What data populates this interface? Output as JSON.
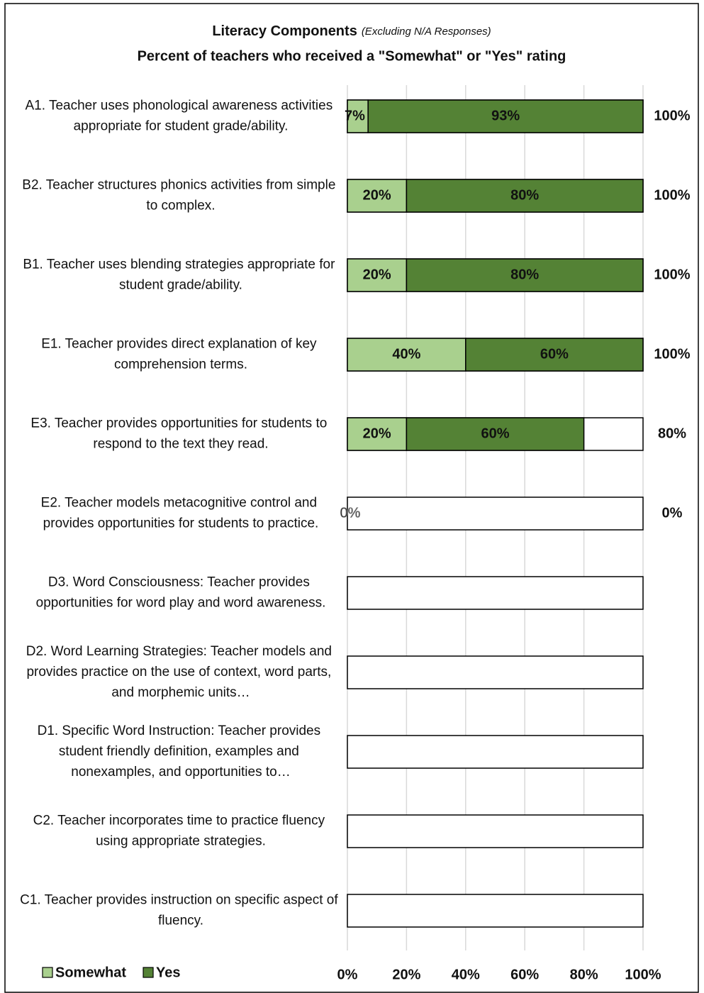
{
  "chart_data": {
    "type": "stacked_barh",
    "title": "Literacy Components",
    "title_note": "(Excluding N/A Responses)",
    "subtitle": "Percent of teachers who received a \"Somewhat\" or \"Yes\" rating",
    "categories": [
      "A1. Teacher uses phonological awareness activities appropriate for student grade/ability.",
      "B2. Teacher structures phonics activities from simple to complex.",
      "B1. Teacher uses blending strategies appropriate for student grade/ability.",
      "E1. Teacher provides direct explanation of key comprehension terms.",
      "E3. Teacher provides opportunities for students to respond to the text they read.",
      "E2. Teacher models metacognitive control and provides opportunities for students to practice.",
      "D3. Word Consciousness: Teacher provides opportunities for word play and word awareness.",
      "D2. Word Learning Strategies: Teacher models and provides practice on the use of context, word parts, and morphemic units…",
      "D1. Specific Word Instruction: Teacher provides student friendly definition, examples and nonexamples, and opportunities to…",
      "C2. Teacher incorporates time to practice fluency using appropriate strategies.",
      "C1. Teacher provides instruction on specific aspect of fluency."
    ],
    "series": [
      {
        "name": "Somewhat",
        "color": "#a9d08e",
        "values": [
          7,
          20,
          20,
          40,
          20,
          0,
          null,
          null,
          null,
          null,
          null
        ],
        "value_labels": [
          "7%",
          "20%",
          "20%",
          "40%",
          "20%",
          "0%",
          null,
          null,
          null,
          null,
          null
        ]
      },
      {
        "name": "Yes",
        "color": "#548235",
        "values": [
          93,
          80,
          80,
          60,
          60,
          null,
          null,
          null,
          null,
          null,
          null
        ],
        "value_labels": [
          "93%",
          "80%",
          "80%",
          "60%",
          "60%",
          null,
          null,
          null,
          null,
          null,
          null
        ]
      }
    ],
    "totals": [
      100,
      100,
      100,
      100,
      80,
      0,
      null,
      null,
      null,
      null,
      null
    ],
    "total_labels": [
      "100%",
      "100%",
      "100%",
      "100%",
      "80%",
      "0%",
      null,
      null,
      null,
      null,
      null
    ],
    "xlim": [
      0,
      100
    ],
    "xticks": [
      {
        "value": 0,
        "label": "0%"
      },
      {
        "value": 20,
        "label": "20%"
      },
      {
        "value": 40,
        "label": "40%"
      },
      {
        "value": 60,
        "label": "60%"
      },
      {
        "value": 80,
        "label": "80%"
      },
      {
        "value": 100,
        "label": "100%"
      }
    ],
    "grid": true,
    "legend": "bottom-left"
  }
}
